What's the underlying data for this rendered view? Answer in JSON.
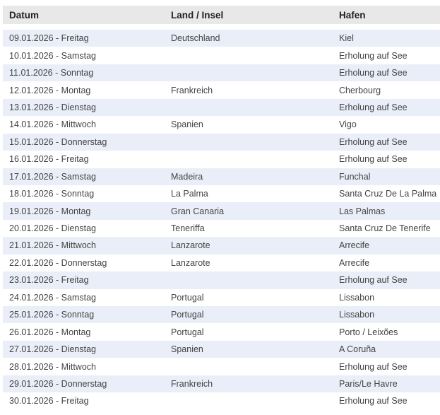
{
  "headers": [
    "Datum",
    "Land / Insel",
    "Hafen"
  ],
  "rows": [
    [
      "09.01.2026 - Freitag",
      "Deutschland",
      "Kiel"
    ],
    [
      "10.01.2026 - Samstag",
      "",
      "Erholung auf See"
    ],
    [
      "11.01.2026 - Sonntag",
      "",
      "Erholung auf See"
    ],
    [
      "12.01.2026 - Montag",
      "Frankreich",
      "Cherbourg"
    ],
    [
      "13.01.2026 - Dienstag",
      "",
      "Erholung auf See"
    ],
    [
      "14.01.2026 - Mittwoch",
      "Spanien",
      "Vigo"
    ],
    [
      "15.01.2026 - Donnerstag",
      "",
      "Erholung auf See"
    ],
    [
      "16.01.2026 - Freitag",
      "",
      "Erholung auf See"
    ],
    [
      "17.01.2026 - Samstag",
      "Madeira",
      "Funchal"
    ],
    [
      "18.01.2026 - Sonntag",
      "La Palma",
      "Santa Cruz De La Palma"
    ],
    [
      "19.01.2026 - Montag",
      "Gran Canaria",
      "Las Palmas"
    ],
    [
      "20.01.2026 - Dienstag",
      "Teneriffa",
      "Santa Cruz De Tenerife"
    ],
    [
      "21.01.2026 - Mittwoch",
      "Lanzarote",
      "Arrecife"
    ],
    [
      "22.01.2026 - Donnerstag",
      "Lanzarote",
      "Arrecife"
    ],
    [
      "23.01.2026 - Freitag",
      "",
      "Erholung auf See"
    ],
    [
      "24.01.2026 - Samstag",
      "Portugal",
      "Lissabon"
    ],
    [
      "25.01.2026 - Sonntag",
      "Portugal",
      "Lissabon"
    ],
    [
      "26.01.2026 - Montag",
      "Portugal",
      "Porto / Leixões"
    ],
    [
      "27.01.2026 - Dienstag",
      "Spanien",
      "A Coruña"
    ],
    [
      "28.01.2026 - Mittwoch",
      "",
      "Erholung auf See"
    ],
    [
      "29.01.2026 - Donnerstag",
      "Frankreich",
      "Paris/Le Havre"
    ],
    [
      "30.01.2026 - Freitag",
      "",
      "Erholung auf See"
    ]
  ]
}
